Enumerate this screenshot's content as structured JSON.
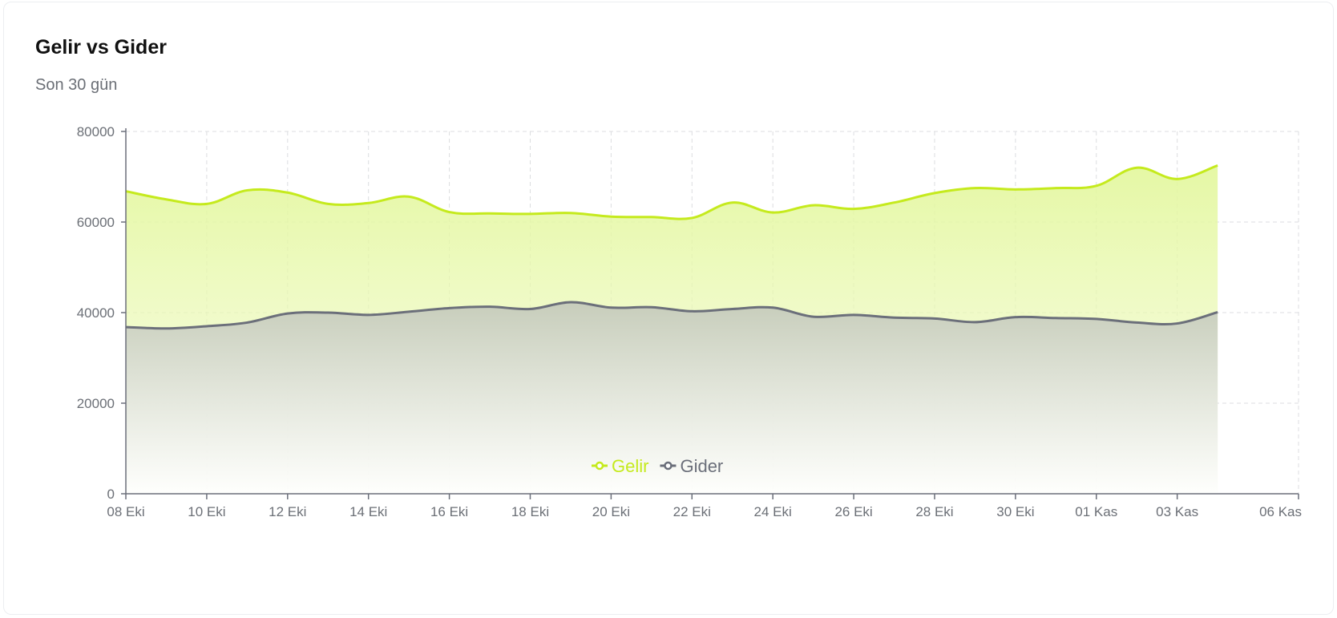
{
  "card": {
    "title": "Gelir vs Gider",
    "subtitle": "Son 30 gün"
  },
  "chart_data": {
    "type": "area",
    "x": [
      "08 Eki",
      "09 Eki",
      "10 Eki",
      "11 Eki",
      "12 Eki",
      "13 Eki",
      "14 Eki",
      "15 Eki",
      "16 Eki",
      "17 Eki",
      "18 Eki",
      "19 Eki",
      "20 Eki",
      "21 Eki",
      "22 Eki",
      "23 Eki",
      "24 Eki",
      "25 Eki",
      "26 Eki",
      "27 Eki",
      "28 Eki",
      "29 Eki",
      "30 Eki",
      "31 Eki",
      "01 Kas",
      "02 Kas",
      "03 Kas",
      "04 Kas"
    ],
    "x_ticks": [
      "08 Eki",
      "10 Eki",
      "12 Eki",
      "14 Eki",
      "16 Eki",
      "18 Eki",
      "20 Eki",
      "22 Eki",
      "24 Eki",
      "26 Eki",
      "28 Eki",
      "30 Eki",
      "01 Kas",
      "03 Kas",
      "06 Kas"
    ],
    "y_ticks": [
      0,
      20000,
      40000,
      60000,
      80000
    ],
    "ylim": [
      0,
      80000
    ],
    "grid": true,
    "legend_position": "bottom-center",
    "series": [
      {
        "name": "Gelir",
        "color": "#c5ea1d",
        "values": [
          66800,
          65000,
          64000,
          67000,
          66500,
          64000,
          64200,
          65600,
          62200,
          61900,
          61800,
          62000,
          61200,
          61100,
          60900,
          64300,
          62100,
          63700,
          62900,
          64300,
          66400,
          67500,
          67200,
          67500,
          68000,
          72000,
          69500,
          72500
        ]
      },
      {
        "name": "Gider",
        "color": "#6b6f7a",
        "values": [
          36800,
          36500,
          37000,
          37800,
          39800,
          40000,
          39500,
          40200,
          41000,
          41300,
          40800,
          42300,
          41100,
          41200,
          40300,
          40800,
          41100,
          39100,
          39500,
          38900,
          38700,
          37900,
          39000,
          38800,
          38600,
          37800,
          37600,
          40100
        ]
      }
    ]
  }
}
